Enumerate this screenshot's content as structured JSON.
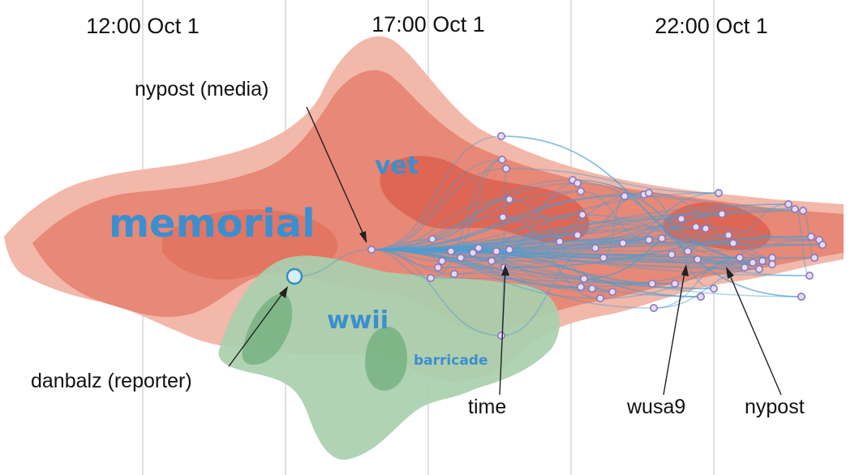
{
  "chart_data": {
    "type": "area",
    "title": "",
    "time_labels": [
      "12:00 Oct 1",
      "17:00 Oct 1",
      "22:00 Oct 1"
    ],
    "topics": [
      {
        "name": "memorial",
        "color": "#3b8fcf",
        "size": "large"
      },
      {
        "name": "vet",
        "color": "#3b8fcf",
        "size": "medium"
      },
      {
        "name": "wwii",
        "color": "#3b8fcf",
        "size": "medium"
      },
      {
        "name": "barricade",
        "color": "#3b8fcf",
        "size": "small"
      }
    ],
    "annotations": [
      {
        "label": "nypost (media)"
      },
      {
        "label": "danbalz (reporter)"
      },
      {
        "label": "time"
      },
      {
        "label": "wusa9"
      },
      {
        "label": "nypost"
      }
    ],
    "colors": {
      "red_outer": "#f2b8aa",
      "red_mid": "#e88876",
      "red_core": "#de6654",
      "green_outer": "#a9cfae",
      "green_core": "#6fae7c",
      "edge": "#4d9ed1",
      "node_fill": "#e4dcf0",
      "node_stroke": "#8a77bf",
      "source_node": "#2f8fc4"
    }
  }
}
